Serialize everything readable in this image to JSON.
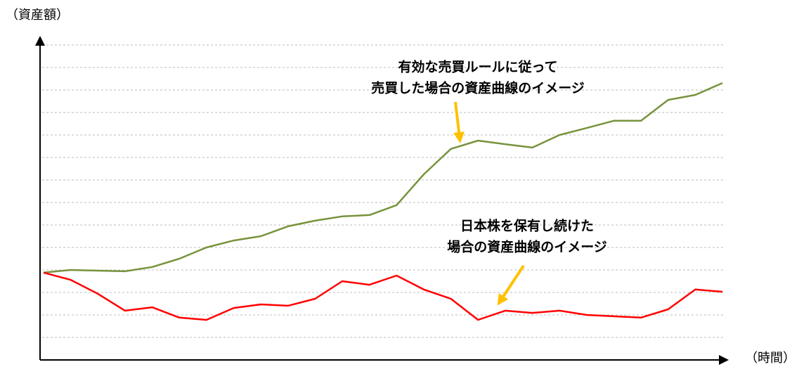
{
  "chart_data": {
    "type": "line",
    "y_label": "（資産額）",
    "x_label": "（時間）",
    "annotations": [
      {
        "lines": [
          "有効な売買ルールに従って",
          "売買した場合の資産曲線のイメージ"
        ]
      },
      {
        "lines": [
          "日本株を保有し続けた",
          "場合の資産曲線のイメージ"
        ]
      }
    ],
    "x": [
      0,
      4,
      8,
      12,
      16,
      20,
      24,
      28,
      32,
      36,
      40,
      44,
      48,
      52,
      56,
      60,
      64,
      68,
      72,
      76,
      80,
      84,
      88,
      92,
      96,
      100
    ],
    "xlim": [
      0,
      100
    ],
    "ylim": [
      0,
      14.5
    ],
    "yticks": [
      1,
      2,
      3,
      4,
      5,
      6,
      7,
      8,
      9,
      10,
      11,
      12,
      13,
      14
    ],
    "grid": true,
    "series": [
      {
        "name": "有効な売買ルール",
        "color": "#77933c",
        "values": [
          3.88,
          4.0,
          3.97,
          3.94,
          4.13,
          4.5,
          5.0,
          5.31,
          5.5,
          5.94,
          6.19,
          6.38,
          6.44,
          6.88,
          8.25,
          9.38,
          9.75,
          9.59,
          9.44,
          10.0,
          10.31,
          10.63,
          10.63,
          11.56,
          11.78,
          12.31
        ]
      },
      {
        "name": "日本株を保有",
        "color": "#ff0000",
        "values": [
          3.88,
          3.56,
          2.94,
          2.19,
          2.34,
          1.88,
          1.78,
          2.31,
          2.47,
          2.41,
          2.72,
          3.5,
          3.34,
          3.75,
          3.13,
          2.72,
          1.78,
          2.19,
          2.09,
          2.19,
          2.0,
          1.94,
          1.88,
          2.25,
          3.13,
          3.03
        ]
      }
    ]
  }
}
